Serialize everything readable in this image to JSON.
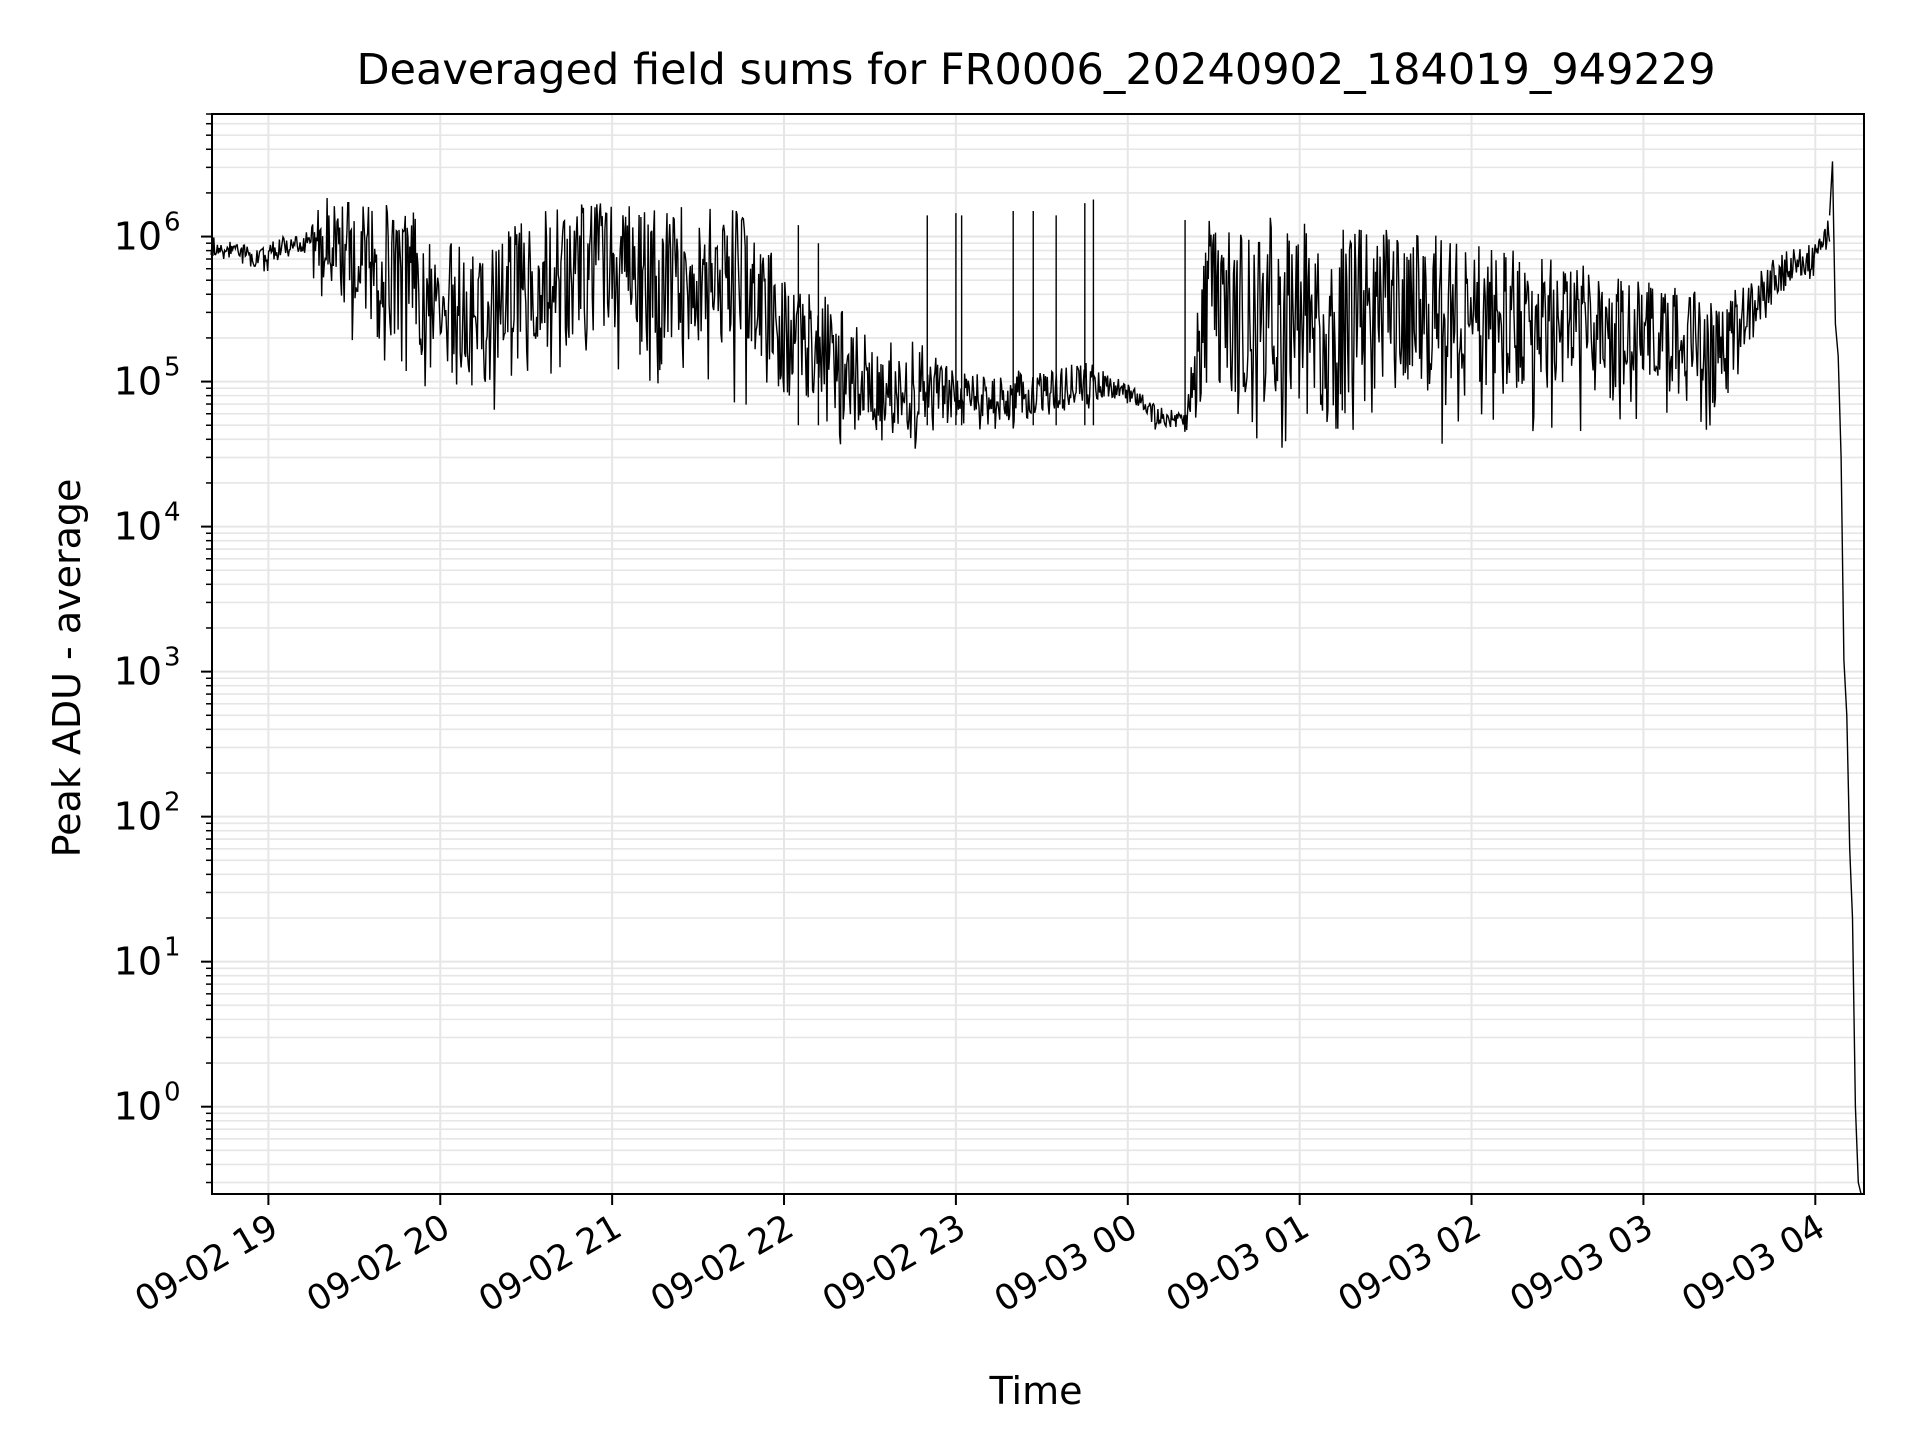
{
  "chart_data": {
    "type": "line",
    "title": "Deaveraged field sums for FR0006_20240902_184019_949229",
    "xlabel": "Time",
    "ylabel": "Peak ADU - average",
    "y_scale": "log",
    "ylim": [
      0.25,
      7000000
    ],
    "xlim": [
      "2024-09-02 18:40:19",
      "2024-09-03 04:17:00"
    ],
    "grid": true,
    "line_color": "#000000",
    "grid_color": "#e6e6e6",
    "x_ticks": [
      "09-02 19",
      "09-02 20",
      "09-02 21",
      "09-02 22",
      "09-02 23",
      "09-03 00",
      "09-03 01",
      "09-03 02",
      "09-03 03",
      "09-03 04"
    ],
    "y_ticks": [
      {
        "base": "10",
        "exp": "0",
        "value": 1
      },
      {
        "base": "10",
        "exp": "1",
        "value": 10
      },
      {
        "base": "10",
        "exp": "2",
        "value": 100
      },
      {
        "base": "10",
        "exp": "3",
        "value": 1000
      },
      {
        "base": "10",
        "exp": "4",
        "value": 10000
      },
      {
        "base": "10",
        "exp": "5",
        "value": 100000
      },
      {
        "base": "10",
        "exp": "6",
        "value": 1000000
      }
    ],
    "series": [
      {
        "style": "noisy",
        "x": [
          "2024-09-02 18:40",
          "2024-09-02 18:50",
          "2024-09-02 18:57",
          "2024-09-02 19:05",
          "2024-09-02 19:12",
          "2024-09-02 19:20",
          "2024-09-02 19:30",
          "2024-09-02 19:40",
          "2024-09-02 19:50",
          "2024-09-02 20:00",
          "2024-09-02 20:15",
          "2024-09-02 20:30",
          "2024-09-02 20:45",
          "2024-09-02 21:00",
          "2024-09-02 21:15",
          "2024-09-02 21:30",
          "2024-09-02 21:45",
          "2024-09-02 22:00",
          "2024-09-02 22:15",
          "2024-09-02 22:30",
          "2024-09-02 22:45",
          "2024-09-02 23:00",
          "2024-09-02 23:15",
          "2024-09-02 23:30",
          "2024-09-02 23:45",
          "2024-09-03 00:00",
          "2024-09-03 00:10",
          "2024-09-03 00:20",
          "2024-09-03 00:28",
          "2024-09-03 00:40",
          "2024-09-03 01:00",
          "2024-09-03 01:20",
          "2024-09-03 01:40",
          "2024-09-03 02:00",
          "2024-09-03 02:20",
          "2024-09-03 02:40",
          "2024-09-03 03:00",
          "2024-09-03 03:15",
          "2024-09-03 03:30",
          "2024-09-03 03:40",
          "2024-09-03 03:50",
          "2024-09-03 04:00",
          "2024-09-03 04:05"
        ],
        "upper": [
          1000000,
          900000,
          850000,
          1000000,
          1000000,
          1900000,
          1800000,
          1700000,
          1600000,
          1000000,
          700000,
          1500000,
          1700000,
          1800000,
          1700000,
          1600000,
          1500000,
          600000,
          400000,
          200000,
          200000,
          120000,
          120000,
          120000,
          140000,
          100000,
          70000,
          60000,
          1400000,
          1400000,
          1300000,
          1200000,
          1100000,
          900000,
          800000,
          700000,
          500000,
          450000,
          400000,
          600000,
          800000,
          900000,
          1400000
        ],
        "lower": [
          600000,
          600000,
          500000,
          700000,
          700000,
          300000,
          150000,
          80000,
          60000,
          50000,
          50000,
          70000,
          90000,
          100000,
          80000,
          70000,
          50000,
          40000,
          35000,
          32000,
          33000,
          40000,
          40000,
          45000,
          60000,
          70000,
          45000,
          40000,
          28000,
          30000,
          28000,
          30000,
          32000,
          35000,
          38000,
          40000,
          42000,
          42000,
          45000,
          200000,
          400000,
          500000,
          700000
        ]
      },
      {
        "style": "smooth",
        "x": [
          "2024-09-03 04:05",
          "2024-09-03 04:06",
          "2024-09-03 04:07",
          "2024-09-03 04:08",
          "2024-09-03 04:09",
          "2024-09-03 04:10",
          "2024-09-03 04:11",
          "2024-09-03 04:12",
          "2024-09-03 04:13",
          "2024-09-03 04:14",
          "2024-09-03 04:15",
          "2024-09-03 04:16"
        ],
        "y": [
          1400000,
          3300000,
          250000,
          150000,
          30000,
          1200,
          500,
          60,
          20,
          1,
          0.3,
          0.25
        ]
      }
    ],
    "spikes": {
      "x": [
        "2024-09-02 22:50",
        "2024-09-02 23:00",
        "2024-09-02 23:02",
        "2024-09-02 23:20",
        "2024-09-02 23:27",
        "2024-09-02 23:35",
        "2024-09-02 23:45",
        "2024-09-02 23:48",
        "2024-09-03 00:20",
        "2024-09-02 22:05",
        "2024-09-02 22:12"
      ],
      "y": [
        1400000,
        1450000,
        1400000,
        1500000,
        1500000,
        1400000,
        1700000,
        1800000,
        1300000,
        1200000,
        900000
      ]
    }
  }
}
